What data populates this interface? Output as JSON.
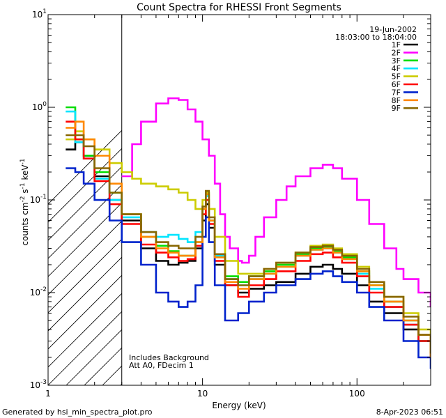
{
  "chart_data": {
    "type": "line",
    "title": "Count Spectra for RHESSI Front Segments",
    "xlabel": "Energy (keV)",
    "ylabel_parts": [
      "counts cm",
      "-2",
      " s",
      "-1",
      " keV",
      "-1"
    ],
    "x_scale": "log",
    "y_scale": "log",
    "xlim": [
      1,
      300
    ],
    "ylim": [
      0.001,
      10
    ],
    "x_ticks": [
      {
        "value": 1,
        "label": "1"
      },
      {
        "value": 10,
        "label": "10"
      },
      {
        "value": 100,
        "label": "100"
      }
    ],
    "y_ticks": [
      {
        "exp": -3,
        "label_base": "10",
        "label_exp": "-3"
      },
      {
        "exp": -2,
        "label_base": "10",
        "label_exp": "-2"
      },
      {
        "exp": -1,
        "label_base": "10",
        "label_exp": "-1"
      },
      {
        "exp": 0,
        "label_base": "10",
        "label_exp": "0"
      },
      {
        "exp": 1,
        "label_base": "10",
        "label_exp": "1"
      }
    ],
    "hatched_region": {
      "from": 1.0,
      "to": 3.0
    },
    "date": "19-Jun-2002",
    "time_range": "18:03:00 to 18:04:00",
    "annotations": [
      "Includes Background",
      "Att A0, FDecim 1"
    ],
    "series": [
      {
        "name": "1F",
        "color": "#000000",
        "points": [
          [
            1.3,
            0.35
          ],
          [
            1.5,
            0.42
          ],
          [
            1.7,
            0.3
          ],
          [
            2.0,
            0.18
          ],
          [
            2.5,
            0.1
          ],
          [
            3.0,
            0.06
          ],
          [
            4.0,
            0.03
          ],
          [
            5.0,
            0.022
          ],
          [
            6.0,
            0.02
          ],
          [
            7.0,
            0.021
          ],
          [
            8.0,
            0.022
          ],
          [
            9.0,
            0.03
          ],
          [
            10.0,
            0.06
          ],
          [
            10.5,
            0.09
          ],
          [
            11.0,
            0.05
          ],
          [
            12.0,
            0.02
          ],
          [
            14.0,
            0.012
          ],
          [
            17.0,
            0.01
          ],
          [
            20.0,
            0.011
          ],
          [
            25.0,
            0.012
          ],
          [
            30.0,
            0.013
          ],
          [
            40.0,
            0.016
          ],
          [
            50.0,
            0.019
          ],
          [
            60.0,
            0.02
          ],
          [
            70.0,
            0.018
          ],
          [
            80.0,
            0.016
          ],
          [
            100.0,
            0.012
          ],
          [
            120.0,
            0.008
          ],
          [
            150.0,
            0.006
          ],
          [
            200.0,
            0.004
          ],
          [
            250.0,
            0.003
          ],
          [
            300.0,
            0.002
          ]
        ]
      },
      {
        "name": "2F",
        "color": "#ff00ff",
        "points": [
          [
            3.0,
            0.18
          ],
          [
            3.5,
            0.4
          ],
          [
            4.0,
            0.7
          ],
          [
            5.0,
            1.1
          ],
          [
            6.0,
            1.25
          ],
          [
            7.0,
            1.2
          ],
          [
            8.0,
            0.95
          ],
          [
            9.0,
            0.7
          ],
          [
            10.0,
            0.45
          ],
          [
            11.0,
            0.3
          ],
          [
            12.0,
            0.15
          ],
          [
            13.0,
            0.07
          ],
          [
            14.0,
            0.04
          ],
          [
            15.0,
            0.03
          ],
          [
            17.0,
            0.022
          ],
          [
            18.0,
            0.021
          ],
          [
            20.0,
            0.025
          ],
          [
            22.0,
            0.04
          ],
          [
            25.0,
            0.065
          ],
          [
            30.0,
            0.1
          ],
          [
            35.0,
            0.14
          ],
          [
            40.0,
            0.18
          ],
          [
            50.0,
            0.22
          ],
          [
            60.0,
            0.24
          ],
          [
            70.0,
            0.22
          ],
          [
            80.0,
            0.17
          ],
          [
            100.0,
            0.1
          ],
          [
            120.0,
            0.055
          ],
          [
            150.0,
            0.03
          ],
          [
            180.0,
            0.018
          ],
          [
            200.0,
            0.014
          ],
          [
            250.0,
            0.01
          ],
          [
            300.0,
            0.007
          ]
        ]
      },
      {
        "name": "3F",
        "color": "#00dd00",
        "points": [
          [
            1.3,
            1.0
          ],
          [
            1.5,
            0.45
          ],
          [
            1.7,
            0.3
          ],
          [
            2.0,
            0.2
          ],
          [
            2.5,
            0.12
          ],
          [
            3.0,
            0.07
          ],
          [
            4.0,
            0.04
          ],
          [
            5.0,
            0.032
          ],
          [
            6.0,
            0.028
          ],
          [
            7.0,
            0.025
          ],
          [
            8.0,
            0.025
          ],
          [
            9.0,
            0.035
          ],
          [
            10.0,
            0.08
          ],
          [
            10.5,
            0.12
          ],
          [
            11.0,
            0.06
          ],
          [
            12.0,
            0.025
          ],
          [
            14.0,
            0.015
          ],
          [
            17.0,
            0.013
          ],
          [
            20.0,
            0.015
          ],
          [
            25.0,
            0.017
          ],
          [
            30.0,
            0.02
          ],
          [
            40.0,
            0.026
          ],
          [
            50.0,
            0.03
          ],
          [
            60.0,
            0.031
          ],
          [
            70.0,
            0.028
          ],
          [
            80.0,
            0.024
          ],
          [
            100.0,
            0.017
          ],
          [
            120.0,
            0.012
          ],
          [
            150.0,
            0.008
          ],
          [
            200.0,
            0.005
          ],
          [
            250.0,
            0.003
          ],
          [
            300.0,
            0.002
          ]
        ]
      },
      {
        "name": "4F",
        "color": "#00e5ff",
        "points": [
          [
            1.3,
            0.9
          ],
          [
            1.5,
            0.42
          ],
          [
            1.7,
            0.28
          ],
          [
            2.0,
            0.17
          ],
          [
            2.5,
            0.1
          ],
          [
            3.0,
            0.065
          ],
          [
            4.0,
            0.045
          ],
          [
            5.0,
            0.04
          ],
          [
            6.0,
            0.042
          ],
          [
            7.0,
            0.038
          ],
          [
            8.0,
            0.035
          ],
          [
            9.0,
            0.045
          ],
          [
            10.0,
            0.08
          ],
          [
            10.5,
            0.11
          ],
          [
            11.0,
            0.06
          ],
          [
            12.0,
            0.025
          ],
          [
            14.0,
            0.014
          ],
          [
            17.0,
            0.012
          ],
          [
            20.0,
            0.014
          ],
          [
            25.0,
            0.016
          ],
          [
            30.0,
            0.019
          ],
          [
            40.0,
            0.025
          ],
          [
            50.0,
            0.029
          ],
          [
            60.0,
            0.03
          ],
          [
            70.0,
            0.027
          ],
          [
            80.0,
            0.023
          ],
          [
            100.0,
            0.016
          ],
          [
            120.0,
            0.011
          ],
          [
            150.0,
            0.007
          ],
          [
            200.0,
            0.0045
          ],
          [
            250.0,
            0.003
          ],
          [
            300.0,
            0.002
          ]
        ]
      },
      {
        "name": "5F",
        "color": "#cccc00",
        "points": [
          [
            1.3,
            0.45
          ],
          [
            1.5,
            0.55
          ],
          [
            1.7,
            0.45
          ],
          [
            2.0,
            0.35
          ],
          [
            2.5,
            0.25
          ],
          [
            3.0,
            0.2
          ],
          [
            3.5,
            0.17
          ],
          [
            4.0,
            0.15
          ],
          [
            5.0,
            0.14
          ],
          [
            6.0,
            0.13
          ],
          [
            7.0,
            0.12
          ],
          [
            8.0,
            0.1
          ],
          [
            9.0,
            0.08
          ],
          [
            10.0,
            0.1
          ],
          [
            10.5,
            0.12
          ],
          [
            11.0,
            0.08
          ],
          [
            12.0,
            0.04
          ],
          [
            14.0,
            0.022
          ],
          [
            17.0,
            0.016
          ],
          [
            20.0,
            0.016
          ],
          [
            25.0,
            0.018
          ],
          [
            30.0,
            0.021
          ],
          [
            40.0,
            0.027
          ],
          [
            50.0,
            0.032
          ],
          [
            60.0,
            0.033
          ],
          [
            70.0,
            0.03
          ],
          [
            80.0,
            0.026
          ],
          [
            100.0,
            0.019
          ],
          [
            120.0,
            0.013
          ],
          [
            150.0,
            0.009
          ],
          [
            200.0,
            0.006
          ],
          [
            250.0,
            0.004
          ],
          [
            300.0,
            0.003
          ]
        ]
      },
      {
        "name": "6F",
        "color": "#ff0000",
        "points": [
          [
            1.3,
            0.7
          ],
          [
            1.5,
            0.45
          ],
          [
            1.7,
            0.28
          ],
          [
            2.0,
            0.16
          ],
          [
            2.5,
            0.09
          ],
          [
            3.0,
            0.055
          ],
          [
            4.0,
            0.033
          ],
          [
            5.0,
            0.027
          ],
          [
            6.0,
            0.024
          ],
          [
            7.0,
            0.022
          ],
          [
            8.0,
            0.023
          ],
          [
            9.0,
            0.032
          ],
          [
            10.0,
            0.07
          ],
          [
            10.5,
            0.1
          ],
          [
            11.0,
            0.055
          ],
          [
            12.0,
            0.022
          ],
          [
            14.0,
            0.012
          ],
          [
            17.0,
            0.009
          ],
          [
            20.0,
            0.012
          ],
          [
            25.0,
            0.014
          ],
          [
            30.0,
            0.017
          ],
          [
            40.0,
            0.022
          ],
          [
            50.0,
            0.026
          ],
          [
            60.0,
            0.027
          ],
          [
            70.0,
            0.024
          ],
          [
            80.0,
            0.021
          ],
          [
            100.0,
            0.015
          ],
          [
            120.0,
            0.01
          ],
          [
            150.0,
            0.007
          ],
          [
            200.0,
            0.0045
          ],
          [
            250.0,
            0.003
          ],
          [
            300.0,
            0.002
          ]
        ]
      },
      {
        "name": "7F",
        "color": "#0022cc",
        "points": [
          [
            1.3,
            0.22
          ],
          [
            1.5,
            0.2
          ],
          [
            1.7,
            0.15
          ],
          [
            2.0,
            0.1
          ],
          [
            2.5,
            0.06
          ],
          [
            3.0,
            0.035
          ],
          [
            4.0,
            0.02
          ],
          [
            5.0,
            0.01
          ],
          [
            6.0,
            0.008
          ],
          [
            7.0,
            0.007
          ],
          [
            8.0,
            0.008
          ],
          [
            9.0,
            0.012
          ],
          [
            10.0,
            0.04
          ],
          [
            10.5,
            0.065
          ],
          [
            11.0,
            0.035
          ],
          [
            12.0,
            0.012
          ],
          [
            14.0,
            0.005
          ],
          [
            17.0,
            0.006
          ],
          [
            20.0,
            0.008
          ],
          [
            25.0,
            0.01
          ],
          [
            30.0,
            0.012
          ],
          [
            40.0,
            0.014
          ],
          [
            50.0,
            0.016
          ],
          [
            60.0,
            0.017
          ],
          [
            70.0,
            0.015
          ],
          [
            80.0,
            0.013
          ],
          [
            100.0,
            0.01
          ],
          [
            120.0,
            0.007
          ],
          [
            150.0,
            0.005
          ],
          [
            200.0,
            0.003
          ],
          [
            250.0,
            0.002
          ],
          [
            300.0,
            0.0015
          ]
        ]
      },
      {
        "name": "8F",
        "color": "#ff8800",
        "points": [
          [
            1.3,
            0.6
          ],
          [
            1.5,
            0.7
          ],
          [
            1.7,
            0.45
          ],
          [
            2.0,
            0.3
          ],
          [
            2.5,
            0.15
          ],
          [
            3.0,
            0.07
          ],
          [
            4.0,
            0.04
          ],
          [
            5.0,
            0.03
          ],
          [
            6.0,
            0.027
          ],
          [
            7.0,
            0.025
          ],
          [
            8.0,
            0.025
          ],
          [
            9.0,
            0.035
          ],
          [
            10.0,
            0.08
          ],
          [
            10.5,
            0.115
          ],
          [
            11.0,
            0.06
          ],
          [
            12.0,
            0.024
          ],
          [
            14.0,
            0.013
          ],
          [
            17.0,
            0.011
          ],
          [
            20.0,
            0.014
          ],
          [
            25.0,
            0.016
          ],
          [
            30.0,
            0.019
          ],
          [
            40.0,
            0.025
          ],
          [
            50.0,
            0.029
          ],
          [
            60.0,
            0.03
          ],
          [
            70.0,
            0.027
          ],
          [
            80.0,
            0.023
          ],
          [
            100.0,
            0.017
          ],
          [
            120.0,
            0.012
          ],
          [
            150.0,
            0.008
          ],
          [
            200.0,
            0.005
          ],
          [
            250.0,
            0.0035
          ],
          [
            300.0,
            0.002
          ]
        ]
      },
      {
        "name": "9F",
        "color": "#886600",
        "points": [
          [
            1.3,
            0.5
          ],
          [
            1.5,
            0.5
          ],
          [
            1.7,
            0.38
          ],
          [
            2.0,
            0.22
          ],
          [
            2.5,
            0.12
          ],
          [
            3.0,
            0.07
          ],
          [
            4.0,
            0.045
          ],
          [
            5.0,
            0.035
          ],
          [
            6.0,
            0.032
          ],
          [
            7.0,
            0.03
          ],
          [
            8.0,
            0.03
          ],
          [
            9.0,
            0.04
          ],
          [
            10.0,
            0.085
          ],
          [
            10.5,
            0.125
          ],
          [
            11.0,
            0.065
          ],
          [
            12.0,
            0.026
          ],
          [
            14.0,
            0.014
          ],
          [
            17.0,
            0.012
          ],
          [
            20.0,
            0.015
          ],
          [
            25.0,
            0.018
          ],
          [
            30.0,
            0.021
          ],
          [
            40.0,
            0.027
          ],
          [
            50.0,
            0.031
          ],
          [
            60.0,
            0.032
          ],
          [
            70.0,
            0.029
          ],
          [
            80.0,
            0.025
          ],
          [
            100.0,
            0.018
          ],
          [
            120.0,
            0.013
          ],
          [
            150.0,
            0.009
          ],
          [
            200.0,
            0.0055
          ],
          [
            250.0,
            0.0035
          ],
          [
            300.0,
            0.0022
          ]
        ]
      }
    ]
  },
  "footer": {
    "generated_by": "Generated by hsi_min_spectra_plot.pro",
    "timestamp": "8-Apr-2023 06:51"
  },
  "colors": {
    "background": "#ffffff",
    "axis": "#000000"
  }
}
